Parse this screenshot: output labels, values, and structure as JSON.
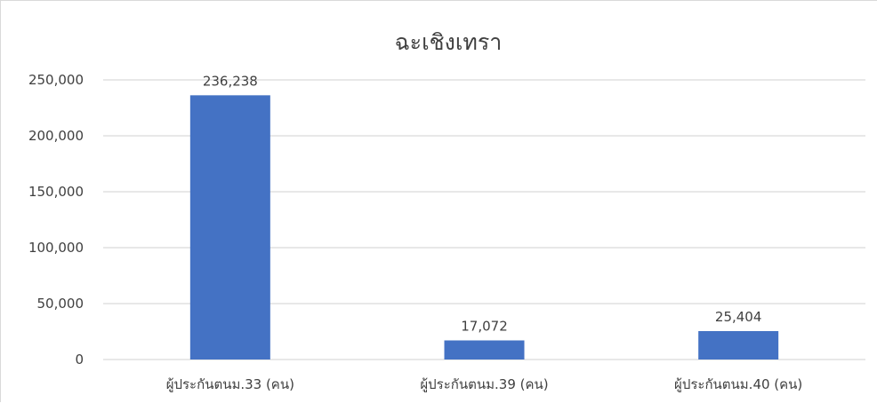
{
  "chart_data": {
    "type": "bar",
    "title": "ฉะเชิงเทรา",
    "categories": [
      "ผู้ประกันตนม.33 (คน)",
      "ผู้ประกันตนม.39 (คน)",
      "ผู้ประกันตนม.40 (คน)"
    ],
    "values": [
      236238,
      17072,
      25404
    ],
    "data_labels": [
      "236,238",
      "17,072",
      "25,404"
    ],
    "y_ticks": [
      0,
      50000,
      100000,
      150000,
      200000,
      250000
    ],
    "y_tick_labels": [
      "0",
      "50,000",
      "100,000",
      "150,000",
      "200,000",
      "250,000"
    ],
    "ylim": [
      0,
      250000
    ],
    "grid": true,
    "legend": "none",
    "colors": {
      "bar": "#4472c4",
      "grid": "#d9d9d9",
      "text": "#404040"
    }
  }
}
